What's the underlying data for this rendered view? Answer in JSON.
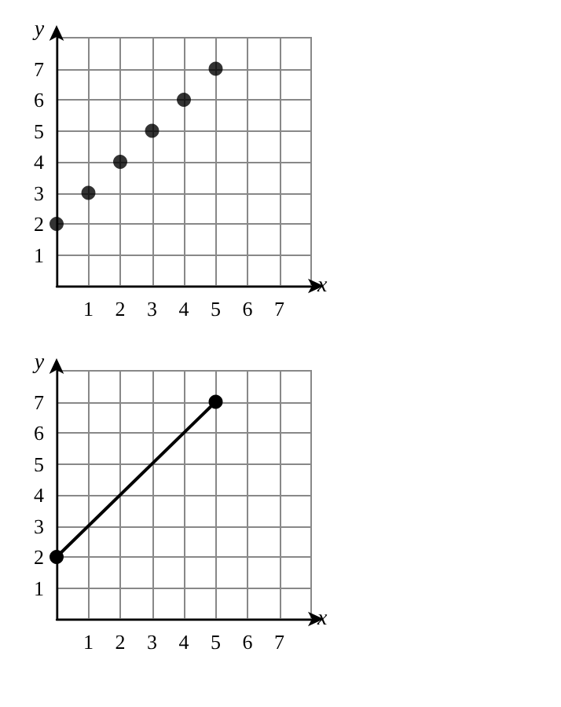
{
  "chart_data": [
    {
      "type": "scatter",
      "xlabel": "x",
      "ylabel": "y",
      "x": [
        0,
        1,
        2,
        3,
        4,
        5
      ],
      "values": [
        2,
        3,
        4,
        5,
        6,
        7
      ],
      "color": "#000000",
      "marker": "circle",
      "xlim": [
        0,
        8
      ],
      "ylim": [
        0,
        8
      ],
      "xticks": [
        1,
        2,
        3,
        4,
        5,
        6,
        7
      ],
      "yticks": [
        1,
        2,
        3,
        4,
        5,
        6,
        7
      ],
      "grid": true
    },
    {
      "type": "line",
      "xlabel": "x",
      "ylabel": "y",
      "x": [
        0,
        5
      ],
      "values": [
        2,
        7
      ],
      "color": "#000000",
      "marker": "circle",
      "line_style": "solid",
      "xlim": [
        0,
        8
      ],
      "ylim": [
        0,
        8
      ],
      "xticks": [
        1,
        2,
        3,
        4,
        5,
        6,
        7
      ],
      "yticks": [
        1,
        2,
        3,
        4,
        5,
        6,
        7
      ],
      "grid": true
    }
  ]
}
